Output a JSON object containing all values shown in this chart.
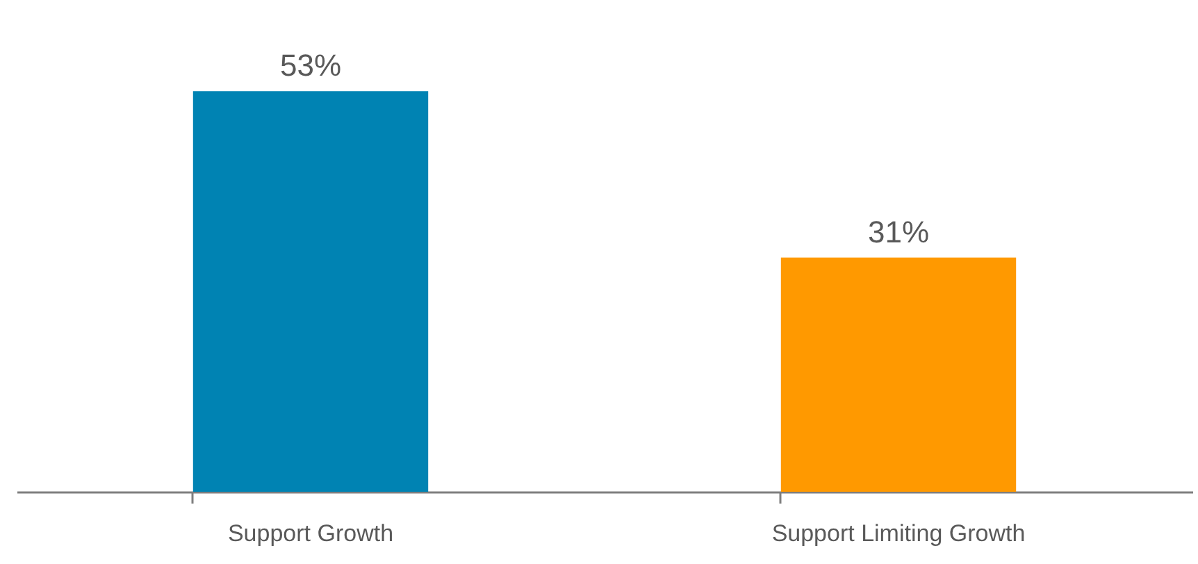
{
  "chart_data": {
    "type": "bar",
    "categories": [
      "Support Growth",
      "Support Limiting Growth"
    ],
    "values": [
      53,
      31
    ],
    "colors": [
      "#0083b3",
      "#ff9900"
    ],
    "value_labels": [
      "53%",
      "31%"
    ],
    "grid": false,
    "tick_labels": "x"
  }
}
